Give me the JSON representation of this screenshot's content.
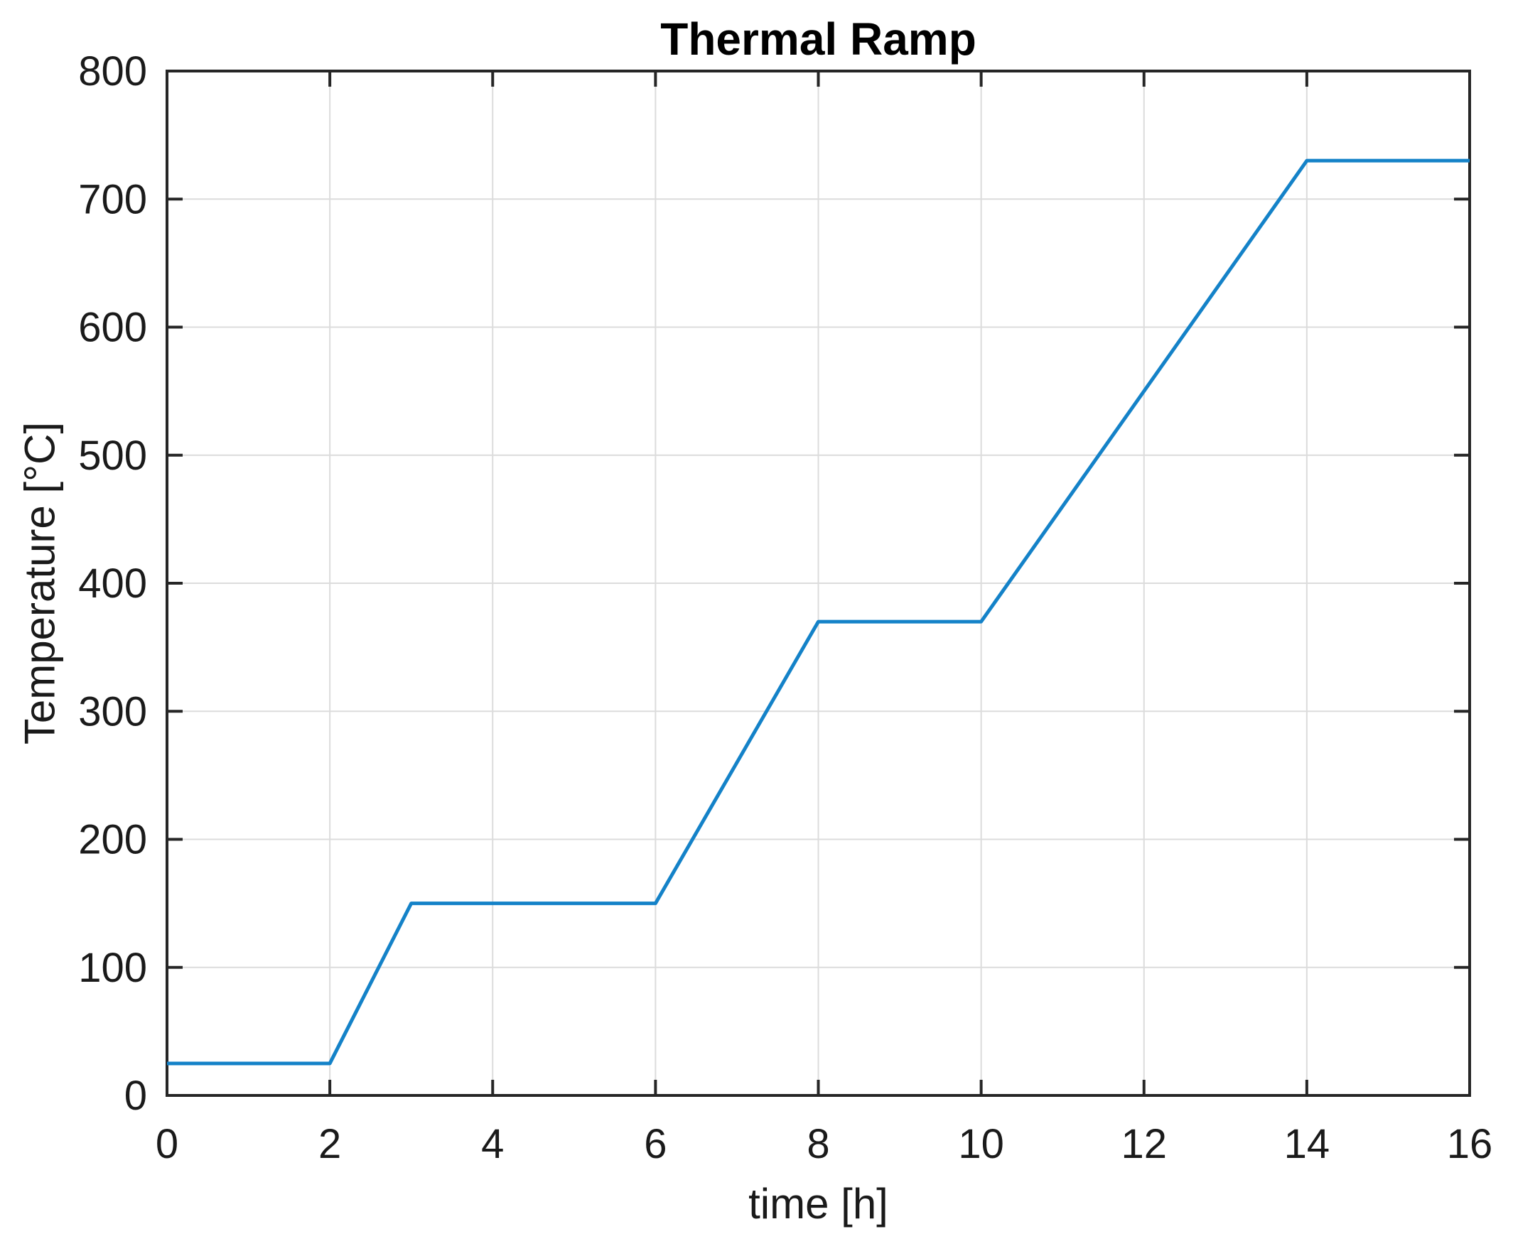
{
  "chart_data": {
    "type": "line",
    "title": "Thermal Ramp",
    "xlabel": "time [h]",
    "ylabel": "Temperature [°C]",
    "x": [
      0,
      2,
      3,
      6,
      8,
      10,
      14,
      16
    ],
    "y": [
      25,
      25,
      150,
      150,
      370,
      370,
      730,
      730
    ],
    "xlim": [
      0,
      16
    ],
    "ylim": [
      0,
      800
    ],
    "xticks": [
      0,
      2,
      4,
      6,
      8,
      10,
      12,
      14,
      16
    ],
    "yticks": [
      0,
      100,
      200,
      300,
      400,
      500,
      600,
      700,
      800
    ],
    "grid": true,
    "legend_position": "none",
    "colors": {
      "line": "#1482c8",
      "grid": "#dcdcdc",
      "axis": "#262626",
      "text": "#1a1a1a",
      "background": "#ffffff"
    }
  }
}
